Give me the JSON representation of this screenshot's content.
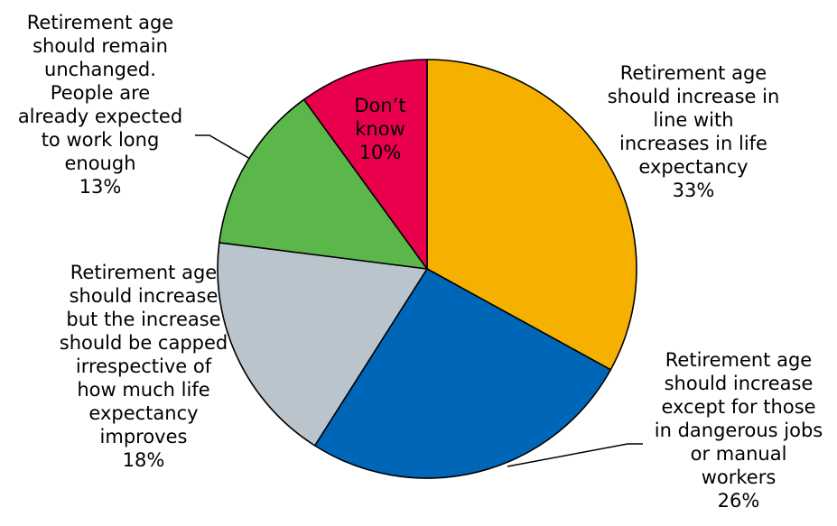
{
  "chart_data": {
    "type": "pie",
    "start_angle_deg": 0,
    "direction": "clockwise",
    "slices": [
      {
        "label_lines": [
          "Retirement age",
          "should increase in",
          "line with",
          "increases in life",
          "expectancy"
        ],
        "value": 33,
        "display": "33%",
        "color": "#F5B000"
      },
      {
        "label_lines": [
          "Retirement age",
          "should increase",
          "except for those",
          "in dangerous jobs",
          "or manual",
          "workers"
        ],
        "value": 26,
        "display": "26%",
        "color": "#0066B8"
      },
      {
        "label_lines": [
          "Retirement age",
          "should increase",
          "but the increase",
          "should be capped",
          "irrespective of",
          "how much life",
          "expectancy",
          "improves"
        ],
        "value": 18,
        "display": "18%",
        "color": "#BAC4CC"
      },
      {
        "label_lines": [
          "Retirement age",
          "should remain",
          "unchanged.",
          "People are",
          "already expected",
          "to work long",
          "enough"
        ],
        "value": 13,
        "display": "13%",
        "color": "#5BB749"
      },
      {
        "label_lines": [
          "Don’t",
          "know"
        ],
        "value": 10,
        "display": "10%",
        "color": "#E8004C"
      }
    ]
  }
}
